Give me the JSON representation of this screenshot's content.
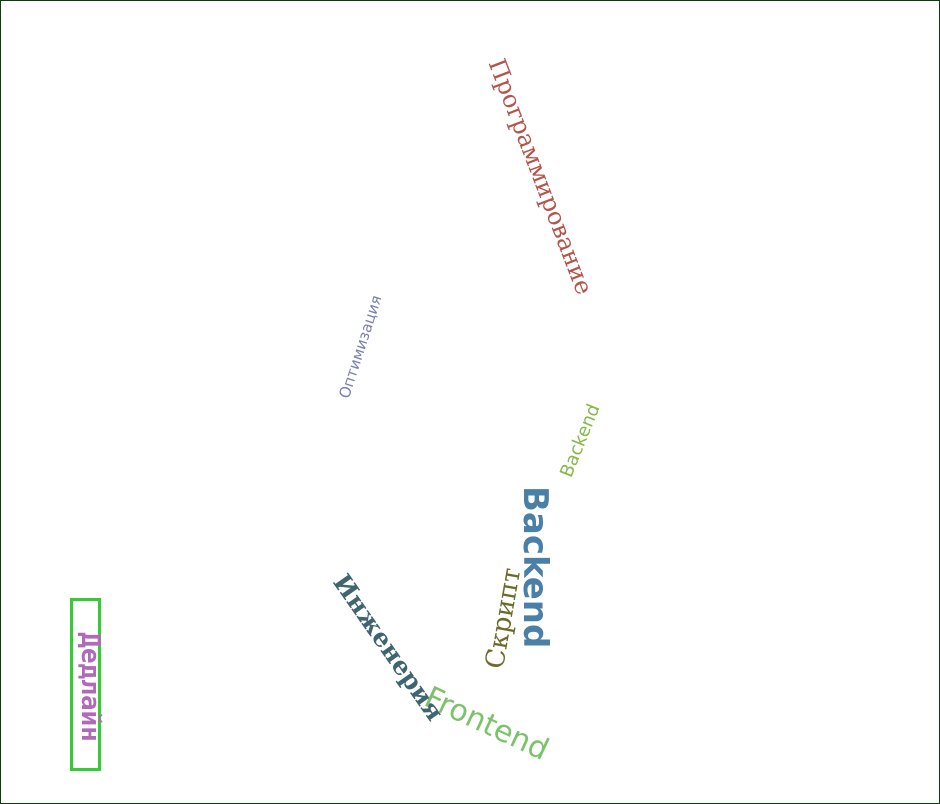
{
  "words": {
    "programming": {
      "text": "Программирование",
      "color": "#b5544a"
    },
    "optimization": {
      "text": "Оптимизация",
      "color": "#7b7fb0"
    },
    "backend_small": {
      "text": "Backend",
      "color": "#86b84a"
    },
    "backend_large": {
      "text": "Backend",
      "color": "#4a7fa8"
    },
    "script": {
      "text": "Скрипт",
      "color": "#6b6b2a"
    },
    "engineering": {
      "text": "Инженерия",
      "color": "#3f6570"
    },
    "frontend": {
      "text": "Frontend",
      "color": "#7cc26a"
    },
    "deadline": {
      "text": "Дедлайн",
      "color": "#b06ab8"
    }
  },
  "highlight_color": "#33cc33"
}
